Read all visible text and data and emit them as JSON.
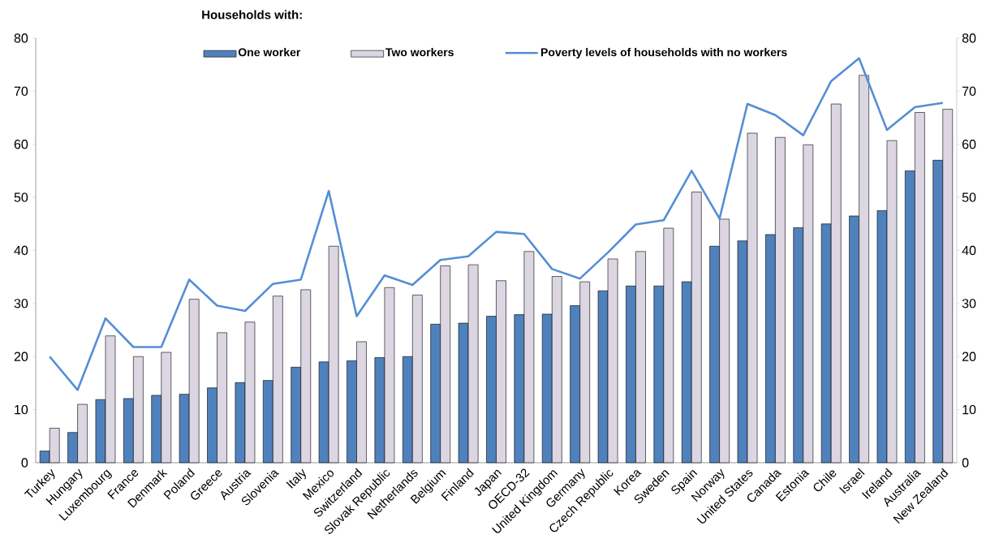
{
  "chart_data": {
    "type": "bar",
    "legend_title": "Households with:",
    "categories": [
      "Turkey",
      "Hungary",
      "Luxembourg",
      "France",
      "Denmark",
      "Poland",
      "Greece",
      "Austria",
      "Slovenia",
      "Italy",
      "Mexico",
      "Switzerland",
      "Slovak Republic",
      "Netherlands",
      "Belgium",
      "Finland",
      "Japan",
      "OECD-32",
      "United Kingdom",
      "Germany",
      "Czech Republic",
      "Korea",
      "Sweden",
      "Spain",
      "Norway",
      "United States",
      "Canada",
      "Estonia",
      "Chile",
      "Israel",
      "Ireland",
      "Australia",
      "New Zealand"
    ],
    "series": [
      {
        "name": "One worker",
        "color": "#4f81bd",
        "values": [
          2.2,
          5.7,
          11.9,
          12.1,
          12.7,
          12.9,
          14.1,
          15.1,
          15.5,
          18,
          19,
          19.2,
          19.8,
          20,
          26.1,
          26.3,
          27.6,
          27.9,
          28,
          29.6,
          32.4,
          33.3,
          33.3,
          34.1,
          40.8,
          41.8,
          43,
          44.3,
          45,
          46.5,
          47.5,
          55,
          57
        ]
      },
      {
        "name": "Two workers",
        "color": "#dcd6e3",
        "values": [
          6.5,
          11,
          23.9,
          20,
          20.8,
          30.8,
          24.5,
          26.5,
          31.4,
          32.6,
          40.8,
          22.8,
          33,
          31.6,
          37.1,
          37.3,
          34.3,
          39.8,
          35.1,
          34.1,
          38.4,
          39.8,
          44.2,
          51,
          45.9,
          62.1,
          61.3,
          59.9,
          67.6,
          73,
          60.7,
          66,
          66.6
        ]
      },
      {
        "name": "Poverty levels of households  with no workers",
        "type": "line",
        "color": "#558ed5",
        "values": [
          20,
          13.7,
          27.2,
          21.8,
          21.8,
          34.5,
          29.6,
          28.6,
          33.7,
          34.5,
          51.2,
          27.6,
          35.3,
          33.5,
          38.2,
          38.9,
          43.5,
          43.1,
          36.5,
          34.7,
          39.6,
          44.9,
          45.7,
          55,
          46,
          67.6,
          65.5,
          61.7,
          71.9,
          76.2,
          62.7,
          67,
          67.8
        ]
      }
    ],
    "ylim": [
      0,
      80
    ],
    "yticks": [
      0,
      10,
      20,
      30,
      40,
      50,
      60,
      70,
      80
    ],
    "y2lim": [
      0,
      80
    ],
    "y2ticks": [
      0,
      10,
      20,
      30,
      40,
      50,
      60,
      70,
      80
    ],
    "legend": "top",
    "grid": false
  }
}
